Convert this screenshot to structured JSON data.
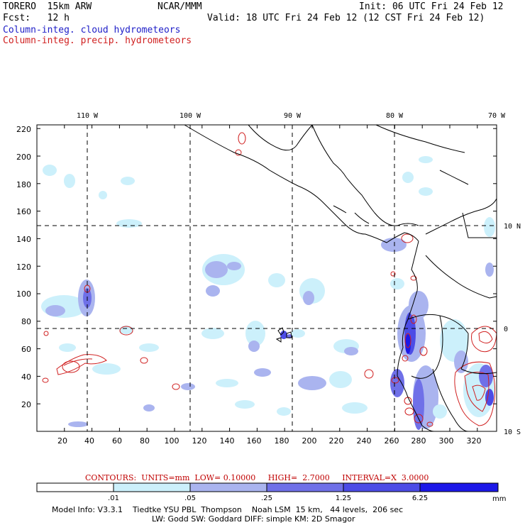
{
  "header": {
    "model": "TORERO  15km ARW",
    "org": "NCAR/MMM",
    "init": "Init: 06 UTC Fri 24 Feb 12",
    "fcst": "Fcst:   12 h",
    "valid": "Valid: 18 UTC Fri 24 Feb 12 (12 CST Fri 24 Feb 12)",
    "field_cloud": "Column-integ. cloud hydrometeors",
    "field_precip": "Column-integ. precip. hydrometeors"
  },
  "colors": {
    "cloud_text": "#2020c8",
    "precip_text": "#d02020",
    "levels": [
      "#ffffff",
      "#ccf0fb",
      "#aab4ef",
      "#6f70e8",
      "#4c4ce6",
      "#1c18e8"
    ]
  },
  "map": {
    "lon_labels": [
      "110 W",
      "100 W",
      "90 W",
      "80 W",
      "70 W"
    ],
    "lat_labels": [
      "10 N",
      "0",
      "10 S"
    ],
    "y_ticks": [
      "220",
      "200",
      "180",
      "160",
      "140",
      "120",
      "100",
      "80",
      "60",
      "40",
      "20"
    ],
    "x_ticks": [
      "20",
      "40",
      "60",
      "80",
      "100",
      "120",
      "140",
      "160",
      "180",
      "200",
      "220",
      "240",
      "260",
      "280",
      "300",
      "320"
    ]
  },
  "legend": {
    "contours": "CONTOURS:  UNITS=mm  LOW= 0.10000     HIGH=  2.7000     INTERVAL=X  3.0000",
    "thresholds": [
      ".01",
      ".05",
      ".25",
      "1.25",
      "6.25"
    ],
    "units": "mm"
  },
  "footer": {
    "line1": "Model Info: V3.3.1    Tiedtke YSU PBL  Thompson    Noah LSM  15 km,   44 levels,  206 sec",
    "line2": "LW: Godd SW: Goddard DIFF: simple KM: 2D Smagor"
  }
}
